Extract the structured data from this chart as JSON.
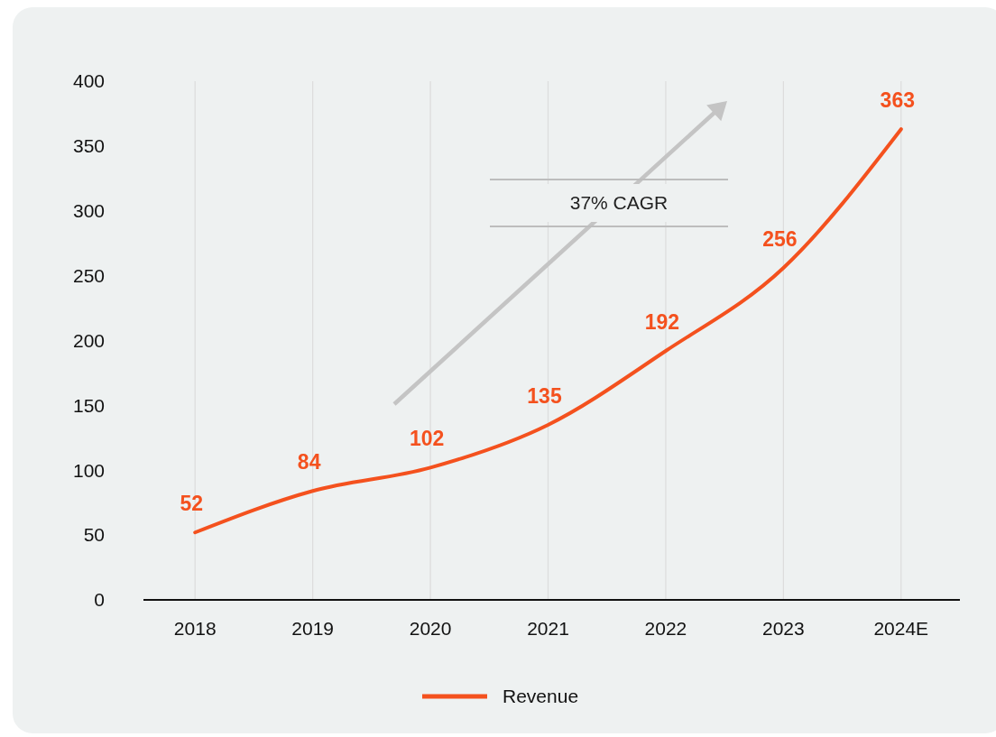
{
  "chart_data": {
    "type": "line",
    "categories": [
      "2018",
      "2019",
      "2020",
      "2021",
      "2022",
      "2023",
      "2024E"
    ],
    "series": [
      {
        "name": "Revenue",
        "color": "#f4511e",
        "values": [
          52,
          84,
          102,
          135,
          192,
          256,
          363
        ]
      }
    ],
    "ylim": [
      0,
      400
    ],
    "yticks": [
      0,
      50,
      100,
      150,
      200,
      250,
      300,
      350,
      400
    ],
    "grid": "x",
    "legend": "bottom",
    "data_labels": true,
    "marker": "none",
    "line_style": "solid",
    "annotations": [
      "37% CAGR"
    ]
  }
}
